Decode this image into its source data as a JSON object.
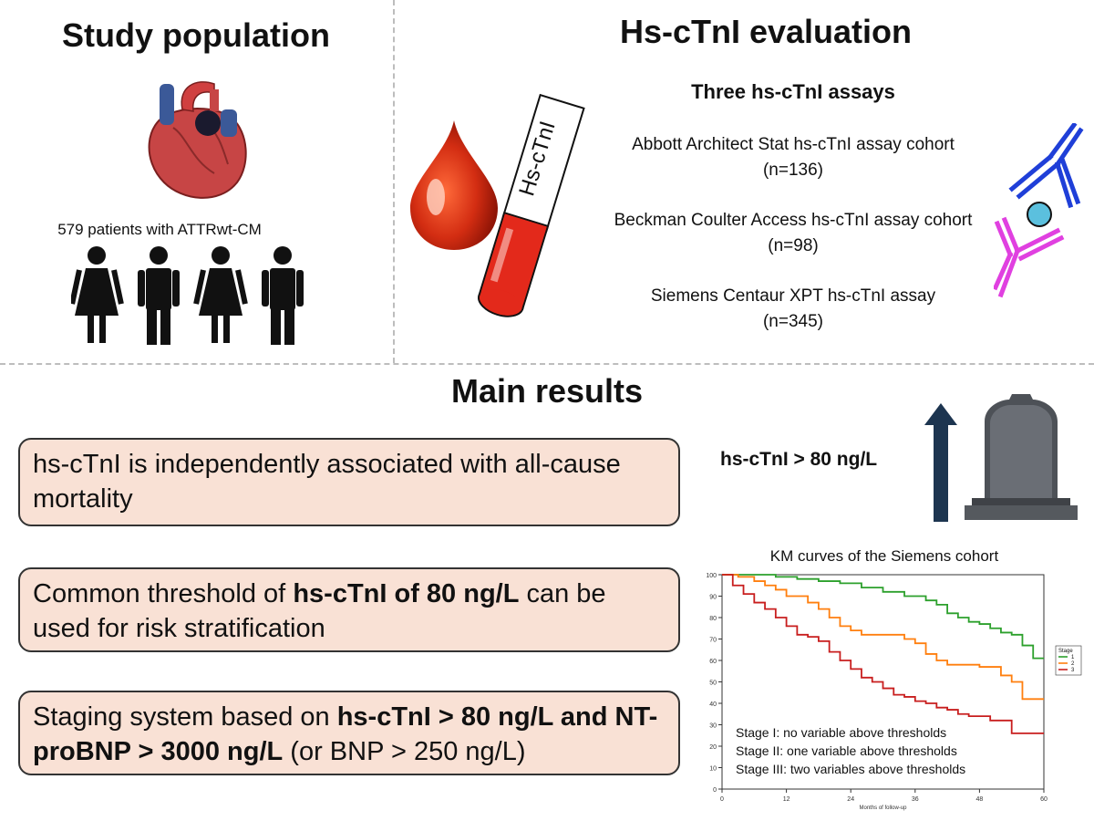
{
  "study_population": {
    "title": "Study population",
    "patients_label": "579 patients with ATTRwt-CM"
  },
  "evaluation": {
    "title": "Hs-cTnI evaluation",
    "tube_label": "Hs-cTnI",
    "assays_heading": "Three hs-cTnI assays",
    "assays": [
      {
        "name": "Abbott Architect Stat hs-cTnI assay cohort",
        "n": "(n=136)"
      },
      {
        "name": "Beckman Coulter Access hs-cTnI assay cohort",
        "n": "(n=98)"
      },
      {
        "name": "Siemens Centaur XPT hs-cTnI assay",
        "n": "(n=345)"
      }
    ]
  },
  "results": {
    "title": "Main results",
    "box1": "hs-cTnI is independently associated with all-cause mortality",
    "box2_pre": "Common threshold of ",
    "box2_bold": "hs-cTnI of 80 ng/L",
    "box2_post": " can be used for risk stratification",
    "box3_pre": "Staging system based on ",
    "box3_bold": "hs-cTnI > 80 ng/L and NT-proBNP > 3000 ng/L",
    "box3_post": " (or BNP > 250 ng/L)",
    "threshold_label": "hs-cTnI > 80 ng/L"
  },
  "colors": {
    "box_fill": "#f9e1d5",
    "arrow": "#1d3550",
    "stage1": "#2ca02c",
    "stage2": "#ff7f0e",
    "stage3": "#c81e1e",
    "antibody_blue": "#1f3fd8",
    "antibody_magenta": "#e040e0",
    "antigen": "#5bc0de"
  },
  "chart_data": {
    "type": "line",
    "title": "KM curves of the Siemens cohort",
    "xlabel": "Months of follow-up",
    "ylabel": "",
    "xlim": [
      0,
      60
    ],
    "ylim": [
      0,
      100
    ],
    "xticks": [
      0,
      12,
      24,
      36,
      48,
      60
    ],
    "yticks": [
      0,
      10,
      20,
      30,
      40,
      50,
      60,
      70,
      80,
      90,
      100
    ],
    "legend_title": "Stage",
    "legend_position": "right",
    "series": [
      {
        "name": "1",
        "points": [
          [
            0,
            100
          ],
          [
            6,
            100
          ],
          [
            10,
            99
          ],
          [
            14,
            98
          ],
          [
            18,
            97
          ],
          [
            22,
            96
          ],
          [
            26,
            94
          ],
          [
            30,
            92
          ],
          [
            34,
            90
          ],
          [
            38,
            88
          ],
          [
            40,
            86
          ],
          [
            42,
            82
          ],
          [
            44,
            80
          ],
          [
            46,
            78
          ],
          [
            48,
            77
          ],
          [
            50,
            75
          ],
          [
            52,
            73
          ],
          [
            54,
            72
          ],
          [
            56,
            67
          ],
          [
            58,
            61
          ],
          [
            60,
            61
          ]
        ]
      },
      {
        "name": "2",
        "points": [
          [
            0,
            100
          ],
          [
            3,
            99
          ],
          [
            6,
            97
          ],
          [
            8,
            95
          ],
          [
            10,
            93
          ],
          [
            12,
            90
          ],
          [
            16,
            87
          ],
          [
            18,
            84
          ],
          [
            20,
            80
          ],
          [
            22,
            76
          ],
          [
            24,
            74
          ],
          [
            26,
            72
          ],
          [
            30,
            72
          ],
          [
            34,
            70
          ],
          [
            36,
            68
          ],
          [
            38,
            63
          ],
          [
            40,
            60
          ],
          [
            42,
            58
          ],
          [
            44,
            58
          ],
          [
            48,
            57
          ],
          [
            52,
            53
          ],
          [
            54,
            50
          ],
          [
            56,
            42
          ],
          [
            60,
            42
          ]
        ]
      },
      {
        "name": "3",
        "points": [
          [
            0,
            100
          ],
          [
            2,
            95
          ],
          [
            4,
            91
          ],
          [
            6,
            87
          ],
          [
            8,
            84
          ],
          [
            10,
            80
          ],
          [
            12,
            76
          ],
          [
            14,
            72
          ],
          [
            16,
            71
          ],
          [
            18,
            69
          ],
          [
            20,
            64
          ],
          [
            22,
            60
          ],
          [
            24,
            56
          ],
          [
            26,
            52
          ],
          [
            28,
            50
          ],
          [
            30,
            47
          ],
          [
            32,
            44
          ],
          [
            34,
            43
          ],
          [
            36,
            41
          ],
          [
            38,
            40
          ],
          [
            40,
            38
          ],
          [
            42,
            37
          ],
          [
            44,
            35
          ],
          [
            46,
            34
          ],
          [
            48,
            34
          ],
          [
            50,
            32
          ],
          [
            52,
            32
          ],
          [
            54,
            26
          ],
          [
            60,
            26
          ]
        ]
      }
    ],
    "annotations": [
      "Stage I: no variable above thresholds",
      "Stage II: one variable above thresholds",
      "Stage III: two variables above thresholds"
    ]
  }
}
